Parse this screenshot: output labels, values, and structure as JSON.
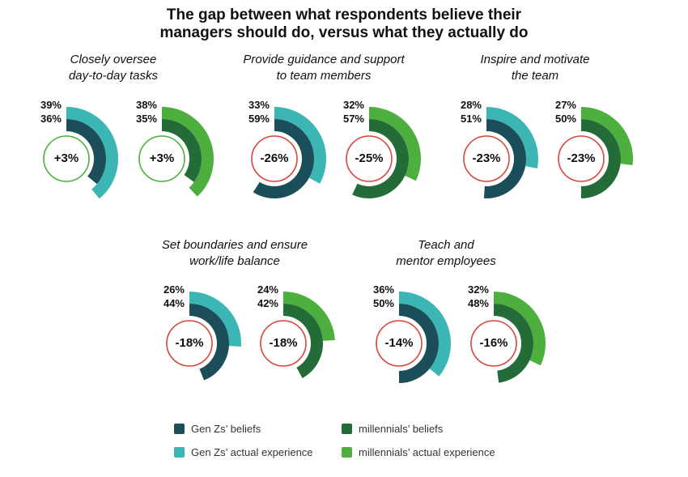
{
  "title_line1": "The gap between what respondents believe their",
  "title_line2": "managers should do, versus what they actually do",
  "colors": {
    "genz_beliefs": "#1c4e5a",
    "genz_actual": "#3cb5b5",
    "mill_beliefs": "#236b37",
    "mill_actual": "#4caf3e",
    "positive": "#4caf3e",
    "negative": "#d9453a"
  },
  "legend": {
    "genz_beliefs": "Gen Zs’ beliefs",
    "genz_actual": "Gen Zs’ actual experience",
    "mill_beliefs": "millennials’ beliefs",
    "mill_actual": "millennials’ actual experience"
  },
  "chart_data": [
    {
      "type": "donut-pair",
      "title_line1": "Closely oversee",
      "title_line2": "day-to-day tasks",
      "genz": {
        "actual": 39,
        "beliefs": 36,
        "gap": "+3%"
      },
      "millennials": {
        "actual": 38,
        "beliefs": 35,
        "gap": "+3%"
      }
    },
    {
      "type": "donut-pair",
      "title_line1": "Provide guidance and support",
      "title_line2": "to team members",
      "genz": {
        "actual": 33,
        "beliefs": 59,
        "gap": "-26%"
      },
      "millennials": {
        "actual": 32,
        "beliefs": 57,
        "gap": "-25%"
      }
    },
    {
      "type": "donut-pair",
      "title_line1": "Inspire and motivate",
      "title_line2": "the team",
      "genz": {
        "actual": 28,
        "beliefs": 51,
        "gap": "-23%"
      },
      "millennials": {
        "actual": 27,
        "beliefs": 50,
        "gap": "-23%"
      }
    },
    {
      "type": "donut-pair",
      "title_line1": "Set boundaries and ensure",
      "title_line2": "work/life balance",
      "genz": {
        "actual": 26,
        "beliefs": 44,
        "gap": "-18%"
      },
      "millennials": {
        "actual": 24,
        "beliefs": 42,
        "gap": "-18%"
      }
    },
    {
      "type": "donut-pair",
      "title_line1": "Teach and",
      "title_line2": "mentor employees",
      "genz": {
        "actual": 36,
        "beliefs": 50,
        "gap": "-14%"
      },
      "millennials": {
        "actual": 32,
        "beliefs": 48,
        "gap": "-16%"
      }
    }
  ]
}
